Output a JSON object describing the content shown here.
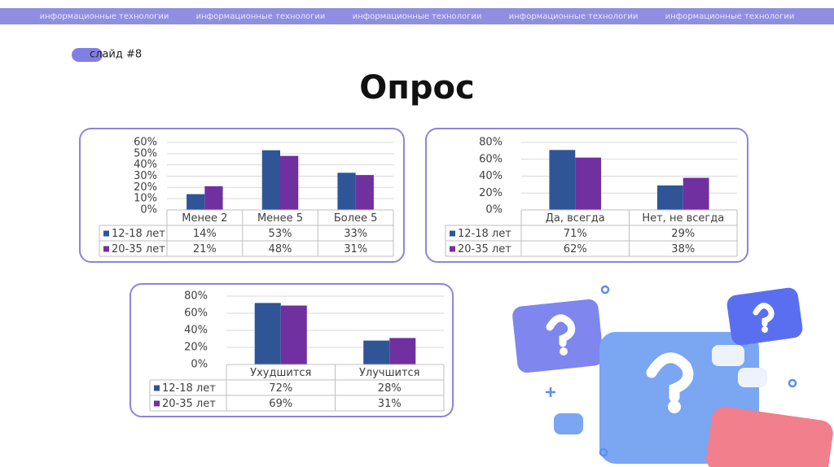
{
  "header": {
    "banner": [
      "информационные технологии",
      "информационные технологии",
      "информационные технологии",
      "информационные технологии",
      "информационные технологии"
    ]
  },
  "slide_label": "слайд #8",
  "title": "Опрос",
  "chart_data": [
    {
      "type": "bar",
      "categories": [
        "Менее 2",
        "Менее 5",
        "Более 5"
      ],
      "series": [
        {
          "name": "12-18 лет",
          "color": "#2f5597",
          "values": [
            14,
            53,
            33
          ],
          "value_labels": [
            "14%",
            "53%",
            "33%"
          ]
        },
        {
          "name": "20-35 лет",
          "color": "#7030a0",
          "values": [
            21,
            48,
            31
          ],
          "value_labels": [
            "21%",
            "48%",
            "31%"
          ]
        }
      ],
      "ylim": [
        0,
        60
      ],
      "yticks": [
        {
          "value": 0,
          "label": "0%"
        },
        {
          "value": 10,
          "label": "10%"
        },
        {
          "value": 20,
          "label": "20%"
        },
        {
          "value": 30,
          "label": "30%"
        },
        {
          "value": 40,
          "label": "40%"
        },
        {
          "value": 50,
          "label": "50%"
        },
        {
          "value": 60,
          "label": "60%"
        }
      ],
      "grid": true
    },
    {
      "type": "bar",
      "categories": [
        "Да, всегда",
        "Нет, не всегда"
      ],
      "series": [
        {
          "name": "12-18 лет",
          "color": "#2f5597",
          "values": [
            71,
            29
          ],
          "value_labels": [
            "71%",
            "29%"
          ]
        },
        {
          "name": "20-35 лет",
          "color": "#7030a0",
          "values": [
            62,
            38
          ],
          "value_labels": [
            "62%",
            "38%"
          ]
        }
      ],
      "ylim": [
        0,
        80
      ],
      "yticks": [
        {
          "value": 0,
          "label": "0%"
        },
        {
          "value": 20,
          "label": "20%"
        },
        {
          "value": 40,
          "label": "40%"
        },
        {
          "value": 60,
          "label": "60%"
        },
        {
          "value": 80,
          "label": "80%"
        }
      ],
      "grid": true
    },
    {
      "type": "bar",
      "categories": [
        "Ухудшится",
        "Улучшится"
      ],
      "series": [
        {
          "name": "12-18 лет",
          "color": "#2f5597",
          "values": [
            72,
            28
          ],
          "value_labels": [
            "72%",
            "28%"
          ]
        },
        {
          "name": "20-35 лет",
          "color": "#7030a0",
          "values": [
            69,
            31
          ],
          "value_labels": [
            "69%",
            "31%"
          ]
        }
      ],
      "ylim": [
        0,
        80
      ],
      "yticks": [
        {
          "value": 0,
          "label": "0%"
        },
        {
          "value": 20,
          "label": "20%"
        },
        {
          "value": 40,
          "label": "40%"
        },
        {
          "value": 60,
          "label": "60%"
        },
        {
          "value": 80,
          "label": "80%"
        }
      ],
      "grid": true
    }
  ]
}
